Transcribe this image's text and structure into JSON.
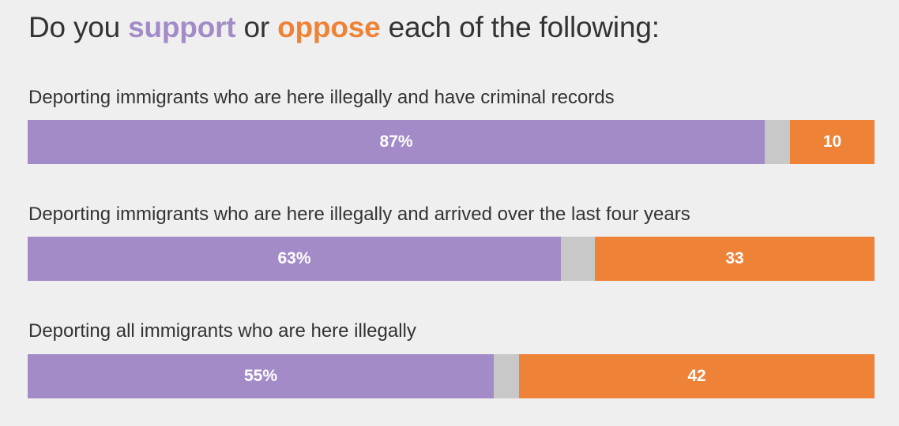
{
  "title": {
    "prefix": "Do you ",
    "support_word": "support",
    "middle": " or ",
    "oppose_word": "oppose",
    "suffix": " each of the following:"
  },
  "colors": {
    "support": "#a38bc8",
    "neutral": "#c8c8c8",
    "oppose": "#ee8237",
    "text": "#333333",
    "background": "#efefef"
  },
  "chart_data": {
    "type": "bar",
    "orientation": "horizontal",
    "stacked": true,
    "scale_max": 100,
    "categories": [
      "Deporting immigrants who are here illegally and have criminal records",
      "Deporting immigrants who are here illegally and arrived over the last four years",
      "Deporting all immigrants who are here illegally"
    ],
    "series": [
      {
        "name": "support",
        "values": [
          87,
          63,
          55
        ],
        "labels": [
          "87%",
          "63%",
          "55%"
        ]
      },
      {
        "name": "",
        "values": [
          3,
          4,
          3
        ],
        "labels": [
          "",
          "",
          ""
        ]
      },
      {
        "name": "oppose",
        "values": [
          10,
          33,
          42
        ],
        "labels": [
          "10",
          "33",
          "42"
        ]
      }
    ]
  }
}
